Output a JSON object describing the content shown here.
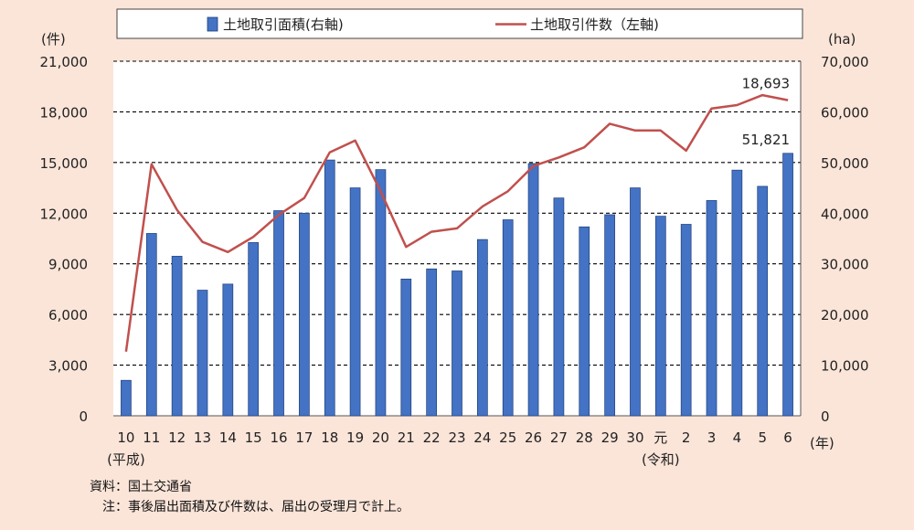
{
  "chart_data": {
    "type": "bar",
    "legend": {
      "bar_label": "土地取引面積(右軸)",
      "line_label": "土地取引件数（左軸)"
    },
    "left_axis": {
      "unit": "(件)",
      "min": 0,
      "max": 21000,
      "ticks": [
        "0",
        "3,000",
        "6,000",
        "9,000",
        "12,000",
        "15,000",
        "18,000",
        "21,000"
      ]
    },
    "right_axis": {
      "unit": "(ha)",
      "min": 0,
      "max": 70000,
      "ticks": [
        "0",
        "10,000",
        "20,000",
        "30,000",
        "40,000",
        "50,000",
        "60,000",
        "70,000"
      ]
    },
    "x_unit": "(年)",
    "categories": [
      "10",
      "11",
      "12",
      "13",
      "14",
      "15",
      "16",
      "17",
      "18",
      "19",
      "20",
      "21",
      "22",
      "23",
      "24",
      "25",
      "26",
      "27",
      "28",
      "29",
      "30",
      "元",
      "2",
      "3",
      "4",
      "5",
      "6"
    ],
    "era_labels": [
      {
        "index": 0,
        "text": "(平成)"
      },
      {
        "index": 21,
        "text": "(令和)"
      }
    ],
    "series": [
      {
        "name": "土地取引面積(右軸)",
        "axis": "right",
        "type": "bar",
        "color": "#4472C4",
        "values": [
          7000,
          36000,
          31500,
          24800,
          26000,
          34200,
          40500,
          40000,
          50500,
          45000,
          48600,
          27000,
          29000,
          28600,
          34800,
          38700,
          49800,
          43000,
          37300,
          39700,
          45000,
          39400,
          37800,
          42500,
          48500,
          45300,
          51821
        ]
      },
      {
        "name": "土地取引件数（左軸)",
        "axis": "left",
        "type": "line",
        "color": "#C0504D",
        "values": [
          3800,
          14900,
          12200,
          10300,
          9700,
          10600,
          11900,
          12900,
          15600,
          16300,
          13300,
          10000,
          10900,
          11100,
          12400,
          13300,
          14800,
          15300,
          15900,
          17300,
          16900,
          16900,
          15700,
          18200,
          18400,
          18990,
          18693
        ]
      }
    ],
    "data_labels": [
      {
        "series": 0,
        "index": 26,
        "text": "51,821"
      },
      {
        "series": 1,
        "index": 26,
        "text": "18,693"
      }
    ],
    "grid": "horizontal dashed"
  },
  "notes": {
    "source": "資料：国土交通省",
    "note": "　注：事後届出面積及び件数は、届出の受理月で計上。"
  }
}
